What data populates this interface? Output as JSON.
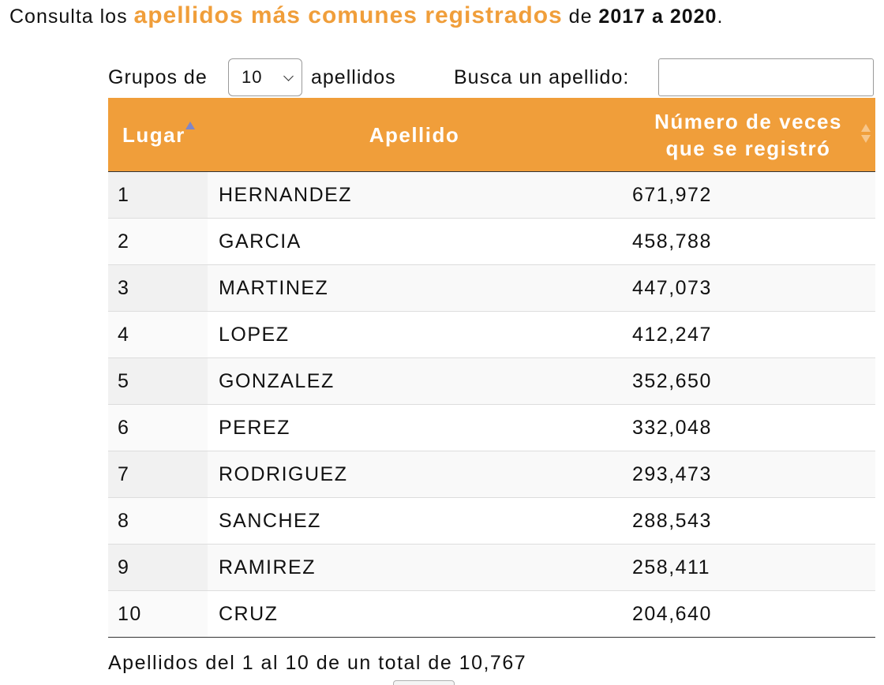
{
  "headline": {
    "prefix": "Consulta los ",
    "highlight": "apellidos más comunes registrados",
    "middle": " de ",
    "years": "2017 a 2020",
    "suffix": "."
  },
  "length_control": {
    "label": "Grupos de",
    "selected": "10",
    "suffix": "apellidos"
  },
  "search": {
    "label": "Busca un apellido:",
    "value": "",
    "placeholder": ""
  },
  "table": {
    "headers": {
      "lugar": "Lugar",
      "apellido": "Apellido",
      "veces_line1": "Número de veces",
      "veces_line2": "que se registró"
    },
    "sorted_column": "lugar",
    "sort_direction": "ascending",
    "rows": [
      {
        "lugar": "1",
        "apellido": "HERNANDEZ",
        "veces": "671,972"
      },
      {
        "lugar": "2",
        "apellido": "GARCIA",
        "veces": "458,788"
      },
      {
        "lugar": "3",
        "apellido": "MARTINEZ",
        "veces": "447,073"
      },
      {
        "lugar": "4",
        "apellido": "LOPEZ",
        "veces": "412,247"
      },
      {
        "lugar": "5",
        "apellido": "GONZALEZ",
        "veces": "352,650"
      },
      {
        "lugar": "6",
        "apellido": "PEREZ",
        "veces": "332,048"
      },
      {
        "lugar": "7",
        "apellido": "RODRIGUEZ",
        "veces": "293,473"
      },
      {
        "lugar": "8",
        "apellido": "SANCHEZ",
        "veces": "288,543"
      },
      {
        "lugar": "9",
        "apellido": "RAMIREZ",
        "veces": "258,411"
      },
      {
        "lugar": "10",
        "apellido": "CRUZ",
        "veces": "204,640"
      }
    ]
  },
  "info": "Apellidos del 1 al 10 de un total de 10,767",
  "colors": {
    "accent": "#f09e3a",
    "header_text": "#ffffff",
    "sort_active": "#7f86c8"
  }
}
